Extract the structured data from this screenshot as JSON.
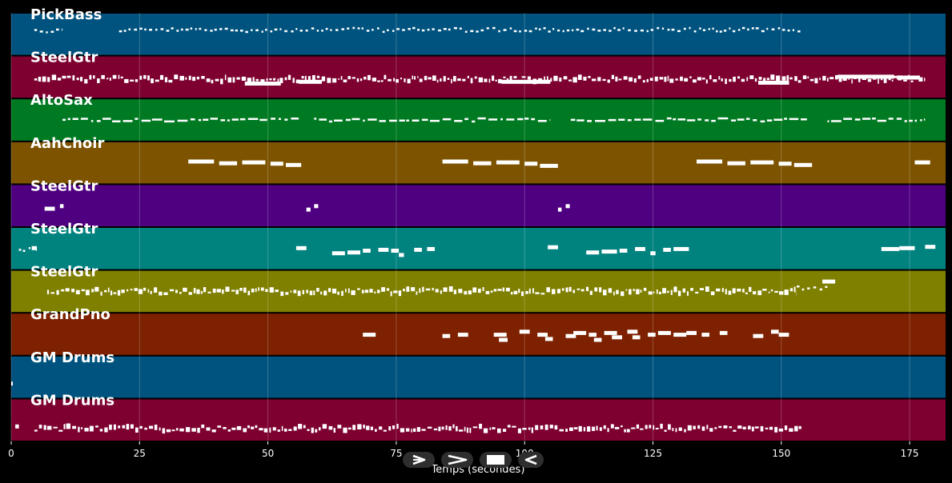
{
  "chart_data": {
    "type": "piano-roll",
    "xlabel": "Temps (secondes)",
    "xlim": [
      0,
      182
    ],
    "xticks": [
      0,
      25,
      50,
      75,
      100,
      125,
      150,
      175
    ],
    "grid": true,
    "tracks": [
      {
        "name": "PickBass",
        "color": "#00537f",
        "phrases": [
          [
            4.5,
            10,
            0.42,
            "dots"
          ],
          [
            21,
            154,
            0.4,
            "dots"
          ]
        ],
        "blocks": []
      },
      {
        "name": "SteelGtr",
        "color": "#7d0030",
        "phrases": [
          [
            4.5,
            178,
            0.55,
            "dense"
          ]
        ],
        "blocks": [
          [
            45.5,
            52.5,
            0.66
          ],
          [
            56,
            60.5,
            0.62
          ],
          [
            95.5,
            105,
            0.62
          ],
          [
            145.5,
            151.5,
            0.64
          ],
          [
            161,
            172,
            0.5
          ],
          [
            172.5,
            177,
            0.52
          ]
        ]
      },
      {
        "name": "AltoSax",
        "color": "#007a22",
        "phrases": [
          [
            10,
            56,
            0.5,
            "dashes"
          ],
          [
            59,
            105,
            0.5,
            "dashes"
          ],
          [
            109,
            155,
            0.5,
            "dashes"
          ],
          [
            159,
            178,
            0.5,
            "dashes"
          ]
        ],
        "blocks": []
      },
      {
        "name": "AahChoir",
        "color": "#7d5300",
        "phrases": [],
        "blocks": [
          [
            34.5,
            39.5,
            0.48
          ],
          [
            40.5,
            44,
            0.52
          ],
          [
            45,
            49.5,
            0.5
          ],
          [
            50.5,
            53,
            0.53
          ],
          [
            53.5,
            56.5,
            0.56
          ],
          [
            84,
            89,
            0.48
          ],
          [
            90,
            93.5,
            0.52
          ],
          [
            94.5,
            99,
            0.5
          ],
          [
            100,
            102.5,
            0.53
          ],
          [
            103,
            106.5,
            0.58
          ],
          [
            133.5,
            138.5,
            0.48
          ],
          [
            139.5,
            143,
            0.52
          ],
          [
            144,
            148.5,
            0.5
          ],
          [
            149.5,
            152,
            0.53
          ],
          [
            152.5,
            156,
            0.56
          ],
          [
            176,
            179,
            0.5
          ]
        ]
      },
      {
        "name": "SteelGtr",
        "color": "#4f0080",
        "phrases": [],
        "blocks": [
          [
            6.5,
            8.5,
            0.58
          ],
          [
            9.5,
            10.2,
            0.52
          ],
          [
            57.5,
            58.3,
            0.6
          ],
          [
            59,
            59.8,
            0.52
          ],
          [
            106.5,
            107.2,
            0.6
          ],
          [
            108,
            108.8,
            0.52
          ]
        ]
      },
      {
        "name": "SteelGtr",
        "color": "#00827f",
        "phrases": [
          [
            1.5,
            5,
            0.52,
            "dots"
          ]
        ],
        "blocks": [
          [
            4,
            5,
            0.5
          ],
          [
            55.5,
            57.5,
            0.5
          ],
          [
            62.5,
            65,
            0.62
          ],
          [
            65.5,
            68,
            0.6
          ],
          [
            68.5,
            70,
            0.56
          ],
          [
            71.5,
            73.5,
            0.54
          ],
          [
            74,
            75.5,
            0.56
          ],
          [
            75.5,
            76.5,
            0.66
          ],
          [
            78.5,
            80,
            0.54
          ],
          [
            81,
            82.5,
            0.52
          ],
          [
            104.5,
            106.5,
            0.48
          ],
          [
            112,
            114.5,
            0.6
          ],
          [
            115,
            118,
            0.58
          ],
          [
            118.5,
            120,
            0.56
          ],
          [
            121.5,
            123.5,
            0.52
          ],
          [
            124.5,
            125.5,
            0.62
          ],
          [
            127,
            128.5,
            0.54
          ],
          [
            129,
            132,
            0.52
          ],
          [
            169.5,
            173,
            0.52
          ],
          [
            173,
            176,
            0.5
          ],
          [
            178,
            180,
            0.47
          ]
        ]
      },
      {
        "name": "SteelGtr",
        "color": "#7f7f00",
        "phrases": [
          [
            7,
            153,
            0.5,
            "dense"
          ],
          [
            153,
            159,
            0.42,
            "dots"
          ]
        ],
        "blocks": [
          [
            158,
            160.5,
            0.28
          ]
        ]
      },
      {
        "name": "GrandPno",
        "color": "#7d2100",
        "phrases": [],
        "blocks": [
          [
            68.5,
            71,
            0.52
          ],
          [
            84,
            85.5,
            0.55
          ],
          [
            87,
            89,
            0.52
          ],
          [
            94,
            96.5,
            0.52
          ],
          [
            95,
            96.7,
            0.64
          ],
          [
            99,
            101,
            0.45
          ],
          [
            102.5,
            104.5,
            0.52
          ],
          [
            104,
            105.5,
            0.62
          ],
          [
            108,
            110,
            0.55
          ],
          [
            109.5,
            112,
            0.48
          ],
          [
            112.5,
            114,
            0.52
          ],
          [
            113.5,
            115,
            0.64
          ],
          [
            115.5,
            118,
            0.48
          ],
          [
            117,
            119,
            0.58
          ],
          [
            120,
            122,
            0.45
          ],
          [
            121,
            122.5,
            0.58
          ],
          [
            124,
            125.5,
            0.52
          ],
          [
            126,
            128.5,
            0.48
          ],
          [
            129,
            131.5,
            0.52
          ],
          [
            131.5,
            133.5,
            0.48
          ],
          [
            134.5,
            136,
            0.52
          ],
          [
            138,
            139.5,
            0.48
          ],
          [
            144.5,
            146.5,
            0.55
          ],
          [
            148,
            149.5,
            0.45
          ],
          [
            149.5,
            151.5,
            0.52
          ]
        ]
      },
      {
        "name": "GM Drums",
        "color": "#00537f",
        "phrases": [],
        "blocks": [
          [
            0,
            0.3,
            0.66
          ]
        ]
      },
      {
        "name": "GM Drums",
        "color": "#7d0030",
        "phrases": [
          [
            4.5,
            154,
            0.7,
            "dense"
          ]
        ],
        "blocks": [
          [
            0.8,
            1.5,
            0.66
          ]
        ]
      }
    ]
  },
  "controls": [
    {
      "icon": "play-icon"
    },
    {
      "icon": "fast-forward-icon"
    },
    {
      "icon": "stop-icon"
    },
    {
      "icon": "rewind-icon"
    }
  ]
}
